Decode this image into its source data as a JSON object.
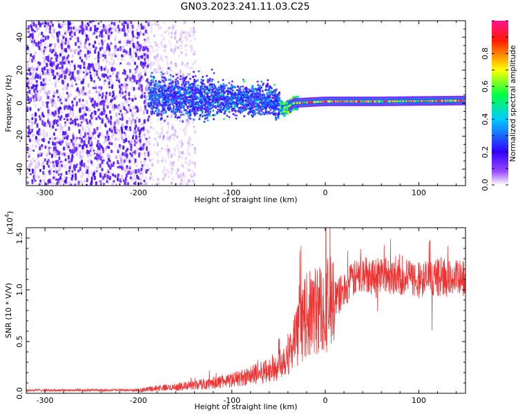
{
  "title": "GN03.2023.241.11.03.C25",
  "chart_data": [
    {
      "type": "heatmap",
      "xlabel": "Height of straight line (km)",
      "ylabel": "Frequency (Hz)",
      "xlim": [
        -320,
        150
      ],
      "ylim": [
        -50,
        50
      ],
      "xticks": [
        -300,
        -200,
        -100,
        0,
        100
      ],
      "yticks": [
        -40,
        -20,
        0,
        20,
        40
      ],
      "colorbar": {
        "label": "Normalized spectral amplitude",
        "range": [
          0,
          1
        ],
        "ticks": [
          "0.0",
          "0.2",
          "0.4",
          "0.6",
          "0.8"
        ],
        "tick_values": [
          0.0,
          0.2,
          0.4,
          0.6,
          0.8
        ],
        "colormap": [
          "#ffffff",
          "#7b00ff",
          "#0000ff",
          "#00ffff",
          "#00ff00",
          "#ffff00",
          "#ff0000",
          "#ff1493"
        ]
      },
      "regions": [
        {
          "x_range": [
            -320,
            -190
          ],
          "freq_range": [
            -50,
            50
          ],
          "amplitude": 0.1,
          "note_shown": false
        },
        {
          "x_range": [
            -190,
            -140
          ],
          "freq_range": [
            -50,
            50
          ],
          "amplitude": 0.05
        },
        {
          "x_range": [
            -190,
            -50
          ],
          "freq_range": [
            -12,
            14
          ],
          "amplitude": 0.25
        },
        {
          "x_range": [
            -50,
            -30
          ],
          "freq_range": [
            -12,
            4
          ],
          "amplitude": 0.5
        },
        {
          "x_range": [
            -40,
            150
          ],
          "freq_range": [
            -1,
            4
          ],
          "amplitude": 0.85
        }
      ],
      "band_center_hz": [
        {
          "x": -190,
          "f": 4
        },
        {
          "x": -120,
          "f": 3
        },
        {
          "x": -60,
          "f": 2
        },
        {
          "x": -45,
          "f": -4
        },
        {
          "x": -35,
          "f": 0
        },
        {
          "x": 0,
          "f": 1
        },
        {
          "x": 60,
          "f": 1
        },
        {
          "x": 150,
          "f": 1.5
        }
      ]
    },
    {
      "type": "line",
      "xlabel": "Height of straight line (km)",
      "ylabel": "SNR (10 * V/V)",
      "yscale_note": "(x10",
      "yscale_exp": "4",
      "xlim": [
        -320,
        150
      ],
      "ylim": [
        0,
        1.6
      ],
      "xticks": [
        -300,
        -200,
        -100,
        0,
        100
      ],
      "yticks": [
        "0.0",
        "0.5",
        "1.0",
        "1.5"
      ],
      "ytick_values": [
        0.0,
        0.5,
        1.0,
        1.5
      ],
      "color": "#ee3333",
      "series": [
        {
          "x": [
            -320,
            -300,
            -250,
            -200,
            -180,
            -160,
            -140,
            -120,
            -100,
            -80,
            -60,
            -50,
            -40,
            -30,
            -20,
            -10,
            0,
            10,
            20,
            30,
            40,
            60,
            80,
            100,
            120,
            150
          ],
          "y": [
            0.03,
            0.03,
            0.03,
            0.03,
            0.05,
            0.06,
            0.08,
            0.1,
            0.13,
            0.17,
            0.22,
            0.28,
            0.38,
            0.55,
            0.75,
            0.8,
            0.85,
            0.9,
            1.0,
            1.1,
            1.15,
            1.15,
            1.12,
            1.1,
            1.12,
            1.1
          ]
        }
      ]
    }
  ]
}
